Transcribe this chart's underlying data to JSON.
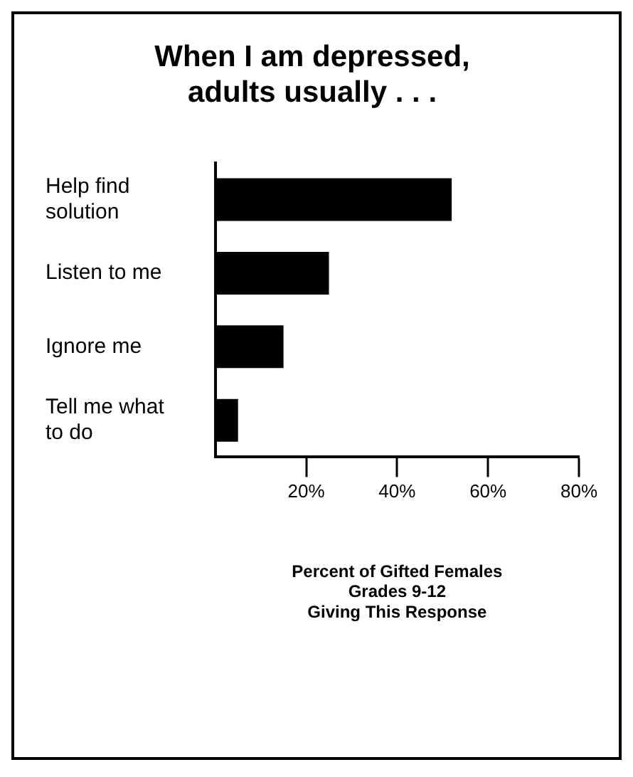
{
  "chart_data": {
    "type": "bar",
    "orientation": "horizontal",
    "title": [
      "When I am depressed,",
      "adults usually . . ."
    ],
    "categories": [
      "Help find solution",
      "Listen to me",
      "Ignore me",
      "Tell me what to do"
    ],
    "values": [
      52,
      25,
      15,
      5
    ],
    "color": "#000000",
    "xlim": [
      0,
      80
    ],
    "xticks": [
      {
        "value": 20,
        "label": "20%"
      },
      {
        "value": 40,
        "label": "40%"
      },
      {
        "value": 60,
        "label": "60%"
      },
      {
        "value": 80,
        "label": "80%"
      }
    ],
    "xlabel": [
      "Percent of Gifted Females",
      "Grades 9-12",
      "Giving This Response"
    ],
    "grid": false,
    "legend": false
  }
}
